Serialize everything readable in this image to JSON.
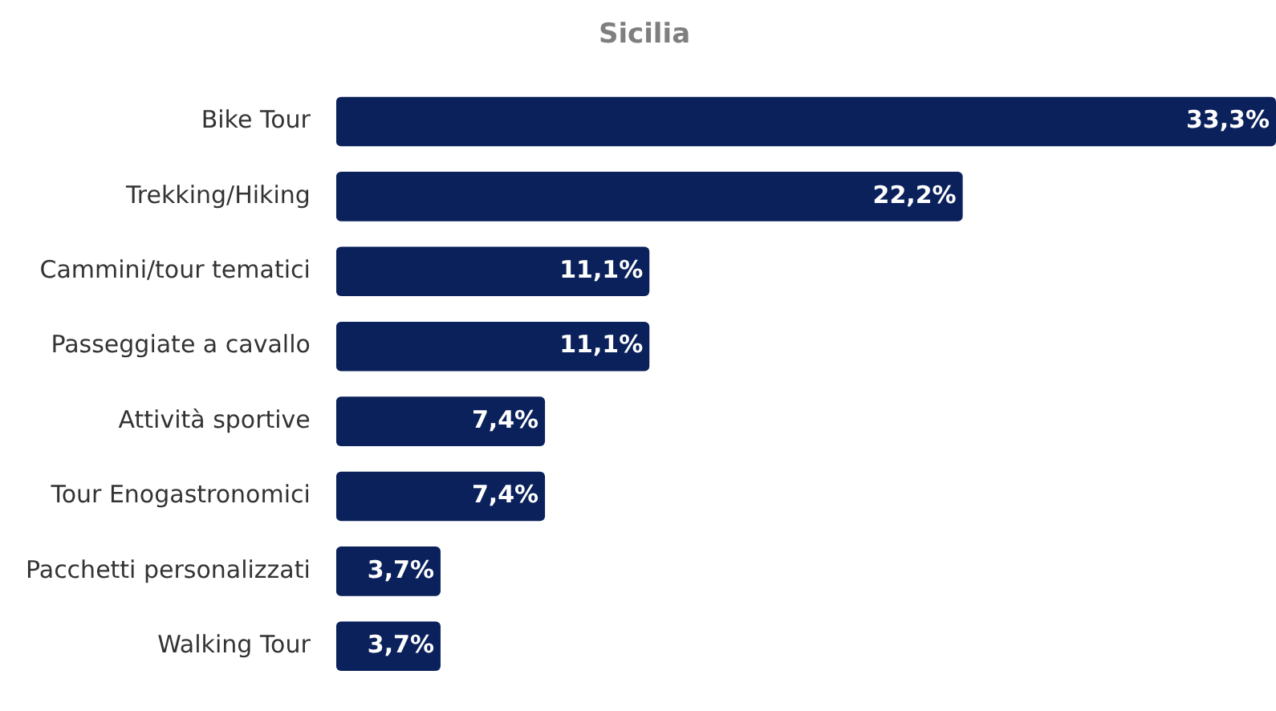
{
  "chart_data": {
    "type": "bar",
    "orientation": "horizontal",
    "title": "Sicilia",
    "categories": [
      "Bike Tour",
      "Trekking/Hiking",
      "Cammini/tour tematici",
      "Passeggiate a cavallo",
      "Attività sportive",
      "Tour Enogastronomici",
      "Pacchetti personalizzati",
      "Walking Tour"
    ],
    "values": [
      33.3,
      22.2,
      11.1,
      11.1,
      7.4,
      7.4,
      3.7,
      3.7
    ],
    "value_labels": [
      "33,3%",
      "22,2%",
      "11,1%",
      "11,1%",
      "7,4%",
      "7,4%",
      "3,7%",
      "3,7%"
    ],
    "color": "#0b215b",
    "grid": false,
    "legend": false
  }
}
